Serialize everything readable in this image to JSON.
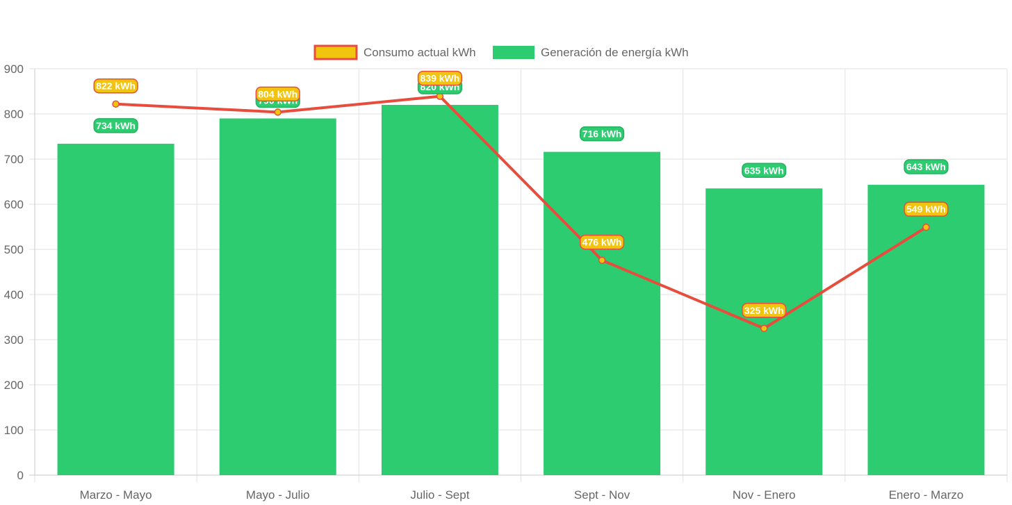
{
  "chart_data": {
    "type": "bar",
    "categories": [
      "Marzo - Mayo",
      "Mayo - Julio",
      "Julio - Sept",
      "Sept - Nov",
      "Nov - Enero",
      "Enero - Marzo"
    ],
    "series": [
      {
        "name": "Consumo actual kWh",
        "type": "line",
        "values": [
          822,
          804,
          839,
          476,
          325,
          549
        ],
        "labels": [
          "822 kWh",
          "804 kWh",
          "839 kWh",
          "476 kWh",
          "325 kWh",
          "549 kWh"
        ],
        "line_color": "#e74c3c",
        "fill_color": "#f1c40f"
      },
      {
        "name": "Generación de energía kWh",
        "type": "bar",
        "values": [
          734,
          790,
          820,
          716,
          635,
          643
        ],
        "labels": [
          "734 kWh",
          "790 kWh",
          "820 kWh",
          "716 kWh",
          "635 kWh",
          "643 kWh"
        ],
        "color": "#2ecc71"
      }
    ],
    "ylim": [
      0,
      900
    ],
    "yticks": [
      0,
      100,
      200,
      300,
      400,
      500,
      600,
      700,
      800,
      900
    ],
    "grid": true,
    "legend_position": "top-center",
    "title": "",
    "xlabel": "",
    "ylabel": ""
  }
}
